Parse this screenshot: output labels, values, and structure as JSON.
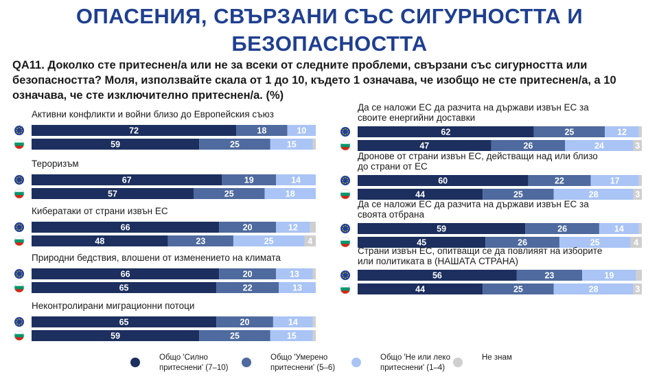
{
  "page": {
    "title_line1": "ОПАСЕНИЯ, СВЪРЗАНИ СЪС СИГУРНОСТТА И",
    "title_line2": "БЕЗОПАСНОСТТА",
    "question": "QA11. Доколко сте притеснен/а или не за всеки от следните проблеми, свързани със сигурността или безопасността? Моля, използвайте скала от 1 до 10, където 1 означава, че изобщо не сте притеснен/а, а 10 означава, че сте изключително притеснен/а. (%)"
  },
  "colors": {
    "strong": "#1c2f5e",
    "moderate": "#4e6a9e",
    "low": "#a9c4f5",
    "dk": "#cfcfcf",
    "eu_flag": "#1f3f9a",
    "eu_star": "#f5d000",
    "bg_white": "#ffffff",
    "bg_green": "#00966e",
    "bg_red": "#d62612"
  },
  "icons": {
    "eu": "eu-flag-icon",
    "bg": "bulgaria-flag-icon"
  },
  "legend": [
    {
      "label": "Общо 'Силно притеснени' (7–10)",
      "color": "#1c2f5e"
    },
    {
      "label": "Общо 'Умерено притеснени' (5–6)",
      "color": "#4e6a9e"
    },
    {
      "label": "Общо 'Не или леко притеснени' (1–4)",
      "color": "#a9c4f5"
    },
    {
      "label": "Не знам",
      "color": "#cfcfcf"
    }
  ],
  "chart_data": {
    "type": "bar",
    "stacked": true,
    "orientation": "horizontal",
    "series_names": [
      "Общо 'Силно притеснени' (7–10)",
      "Общо 'Умерено притеснени' (5–6)",
      "Общо 'Не или леко притеснени' (1–4)",
      "Не знам"
    ],
    "xlim": [
      0,
      100
    ],
    "items": [
      {
        "label": "Активни конфликти и войни близо до Европейския съюз",
        "eu": [
          72,
          18,
          10,
          0
        ],
        "bg": [
          59,
          25,
          15,
          1
        ],
        "eu_labels": [
          "72",
          "18",
          "10",
          ""
        ],
        "bg_labels": [
          "59",
          "25",
          "15",
          ""
        ]
      },
      {
        "label": "Тероризъм",
        "eu": [
          67,
          19,
          14,
          0
        ],
        "bg": [
          57,
          25,
          18,
          0
        ],
        "eu_labels": [
          "67",
          "19",
          "14",
          ""
        ],
        "bg_labels": [
          "57",
          "25",
          "18",
          ""
        ]
      },
      {
        "label": "Кибератаки от страни извън ЕС",
        "eu": [
          66,
          20,
          12,
          2
        ],
        "bg": [
          48,
          23,
          25,
          4
        ],
        "eu_labels": [
          "66",
          "20",
          "12",
          ""
        ],
        "bg_labels": [
          "48",
          "23",
          "25",
          "4"
        ]
      },
      {
        "label": "Природни бедствия, влошени от изменението на климата",
        "eu": [
          66,
          20,
          13,
          1
        ],
        "bg": [
          65,
          22,
          13,
          0
        ],
        "eu_labels": [
          "66",
          "20",
          "13",
          ""
        ],
        "bg_labels": [
          "65",
          "22",
          "13",
          ""
        ]
      },
      {
        "label": "Неконтролирани миграционни потоци",
        "eu": [
          65,
          20,
          14,
          1
        ],
        "bg": [
          59,
          25,
          15,
          1
        ],
        "eu_labels": [
          "65",
          "20",
          "14",
          ""
        ],
        "bg_labels": [
          "59",
          "25",
          "15",
          ""
        ]
      },
      {
        "label": "Да се наложи ЕС да разчита на държави извън ЕС за своите енергийни доставки",
        "eu": [
          62,
          25,
          12,
          1
        ],
        "bg": [
          47,
          26,
          24,
          3
        ],
        "eu_labels": [
          "62",
          "25",
          "12",
          ""
        ],
        "bg_labels": [
          "47",
          "26",
          "24",
          "3"
        ]
      },
      {
        "label": "Дронове от страни извън ЕС, действащи над или близо до страни от ЕС",
        "eu": [
          60,
          22,
          17,
          1
        ],
        "bg": [
          44,
          25,
          28,
          3
        ],
        "eu_labels": [
          "60",
          "22",
          "17",
          ""
        ],
        "bg_labels": [
          "44",
          "25",
          "28",
          "3"
        ]
      },
      {
        "label": "Да се наложи ЕС да разчита на държави извън ЕС за своята отбрана",
        "eu": [
          59,
          26,
          14,
          1
        ],
        "bg": [
          45,
          26,
          25,
          4
        ],
        "eu_labels": [
          "59",
          "26",
          "14",
          ""
        ],
        "bg_labels": [
          "45",
          "26",
          "25",
          "4"
        ]
      },
      {
        "label": "Страни извън ЕС, опитващи се да повлияят на изборите или политиката в (НАШАТА СТРАНА)",
        "eu": [
          56,
          23,
          19,
          2
        ],
        "bg": [
          44,
          25,
          28,
          3
        ],
        "eu_labels": [
          "56",
          "23",
          "19",
          ""
        ],
        "bg_labels": [
          "44",
          "25",
          "28",
          "3"
        ]
      }
    ]
  }
}
